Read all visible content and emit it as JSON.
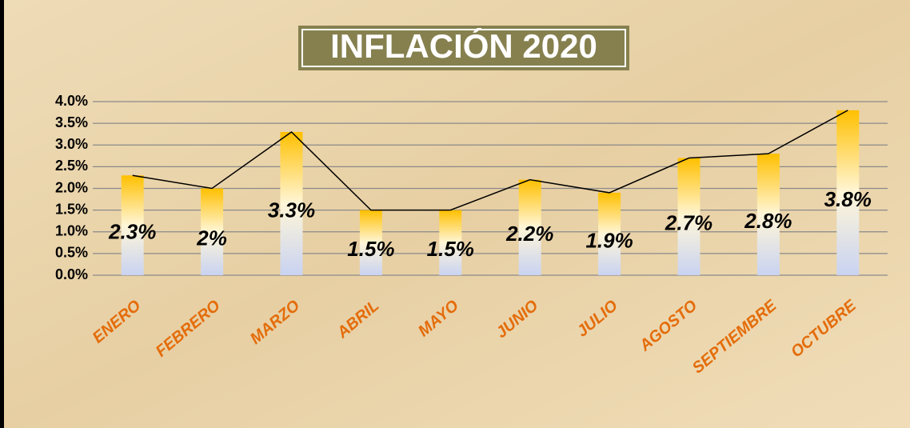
{
  "chart_data": {
    "type": "bar",
    "title": "INFLACIÓN 2020",
    "categories": [
      "ENERO",
      "FEBRERO",
      "MARZO",
      "ABRIL",
      "MAYO",
      "JUNIO",
      "JULIO",
      "AGOSTO",
      "SEPTIEMBRE",
      "OCTUBRE"
    ],
    "values": [
      2.3,
      2,
      3.3,
      1.5,
      1.5,
      2.2,
      1.9,
      2.7,
      2.8,
      3.8
    ],
    "value_labels": [
      "2.3%",
      "2%",
      "3.3%",
      "1.5%",
      "1.5%",
      "2.2%",
      "1.9%",
      "2.7%",
      "2.8%",
      "3.8%"
    ],
    "color": "#ffc000",
    "line_color": "#000000",
    "ylim": [
      0,
      4
    ],
    "yticks": [
      {
        "value": 0,
        "label": "0.0%"
      },
      {
        "value": 0.5,
        "label": "0.5%"
      },
      {
        "value": 1,
        "label": "1.0%"
      },
      {
        "value": 1.5,
        "label": "1.5%"
      },
      {
        "value": 2,
        "label": "2.0%"
      },
      {
        "value": 2.5,
        "label": "2.5%"
      },
      {
        "value": 3,
        "label": "3.0%"
      },
      {
        "value": 3.5,
        "label": "3.5%"
      },
      {
        "value": 4,
        "label": "4.0%"
      }
    ],
    "grid": true
  }
}
